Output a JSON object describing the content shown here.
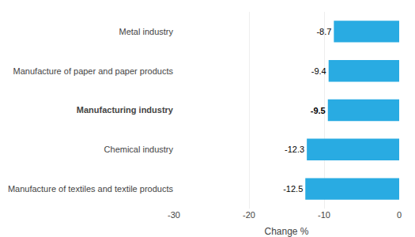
{
  "chart_data": {
    "type": "bar",
    "orientation": "horizontal",
    "categories": [
      "Manufacture of textiles and textile products",
      "Chemical industry",
      "Manufacturing industry",
      "Manufacture of paper and paper products",
      "Metal industry"
    ],
    "values": [
      -12.5,
      -12.3,
      -9.5,
      -9.4,
      -8.7
    ],
    "color": "#29ABE2",
    "xlabel": "Change %",
    "xlim": [
      -30,
      0
    ],
    "xticks": [
      -30,
      -20,
      -10,
      0
    ],
    "grid": true,
    "data_labels": true
  }
}
